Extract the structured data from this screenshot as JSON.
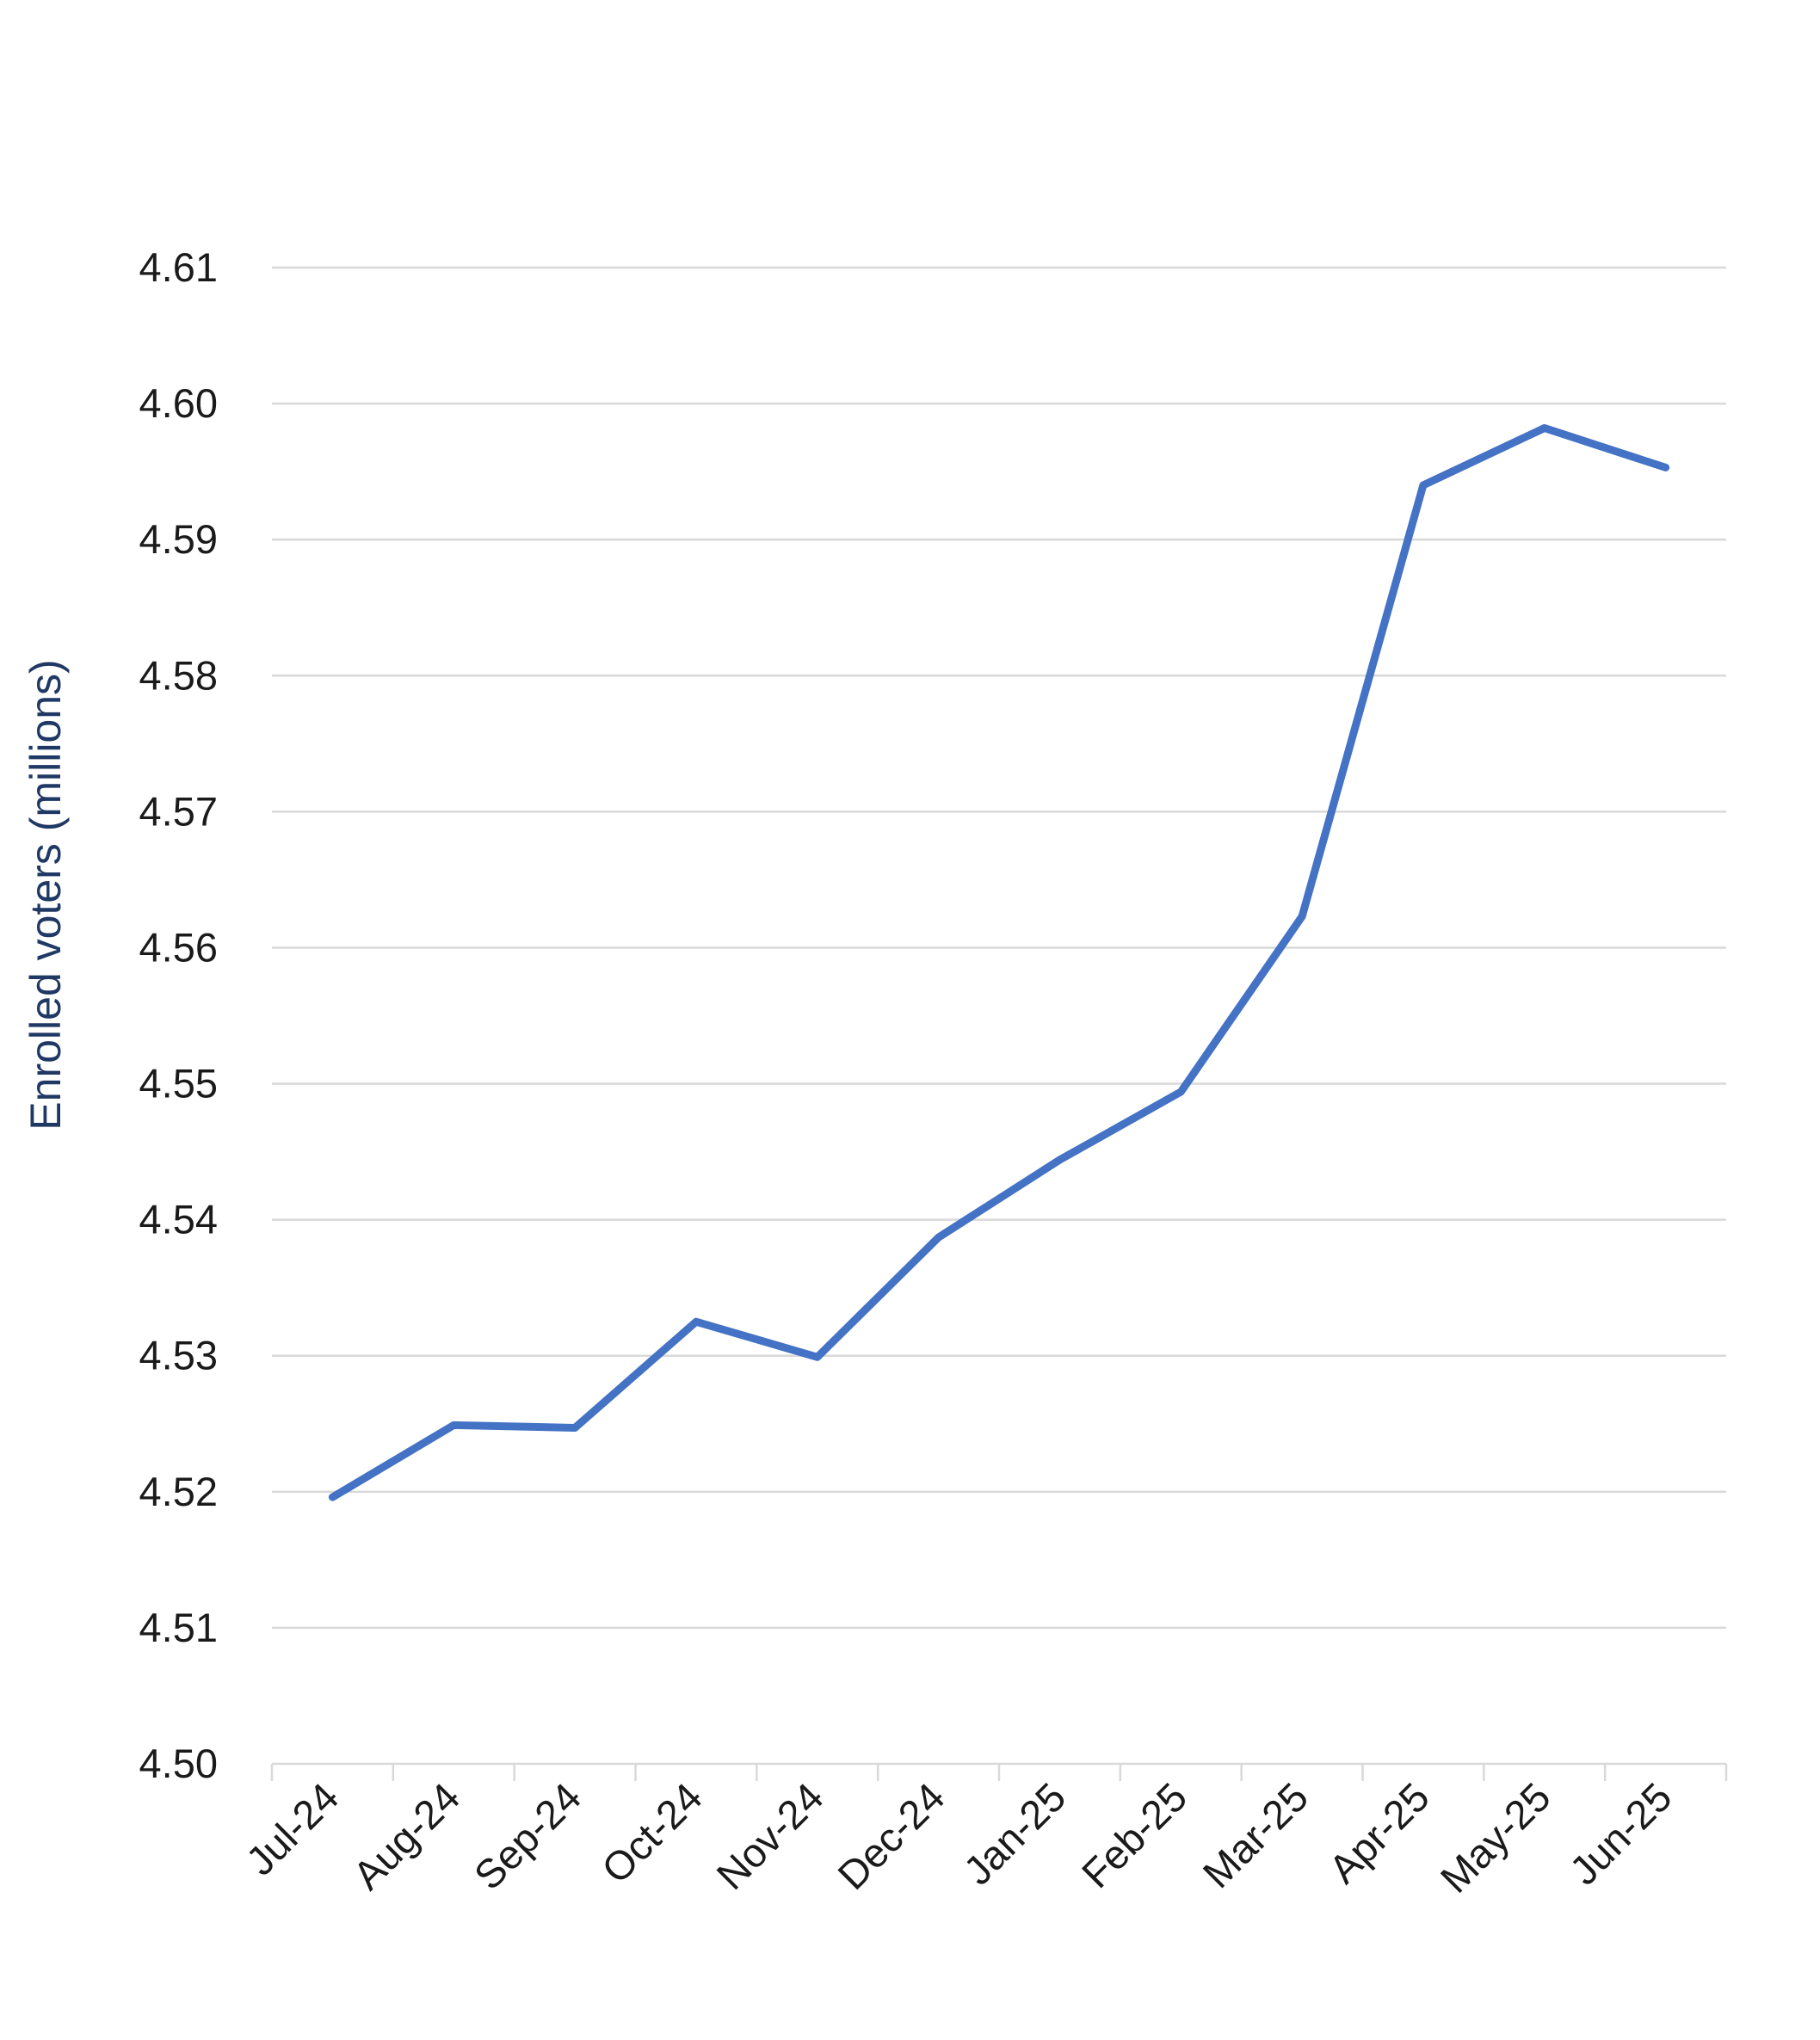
{
  "chart_data": {
    "type": "line",
    "title": "",
    "xlabel": "",
    "ylabel": "Enrolled voters (millions)",
    "ylim": [
      4.5,
      4.61
    ],
    "yticks": [
      "4.50",
      "4.51",
      "4.52",
      "4.53",
      "4.54",
      "4.55",
      "4.56",
      "4.57",
      "4.58",
      "4.59",
      "4.60",
      "4.61"
    ],
    "grid": true,
    "legend": "none",
    "categories": [
      "Jul-24",
      "Aug-24",
      "Sep-24",
      "Oct-24",
      "Nov-24",
      "Dec-24",
      "Jan-25",
      "Feb-25",
      "Mar-25",
      "Apr-25",
      "May-25",
      "Jun-25"
    ],
    "series": [
      {
        "color": "#4472c4",
        "values": [
          4.5196,
          4.5249,
          4.5247,
          4.5325,
          4.5299,
          4.5387,
          4.5444,
          4.5494,
          4.5623,
          4.594,
          4.5982,
          4.5953
        ]
      }
    ]
  }
}
